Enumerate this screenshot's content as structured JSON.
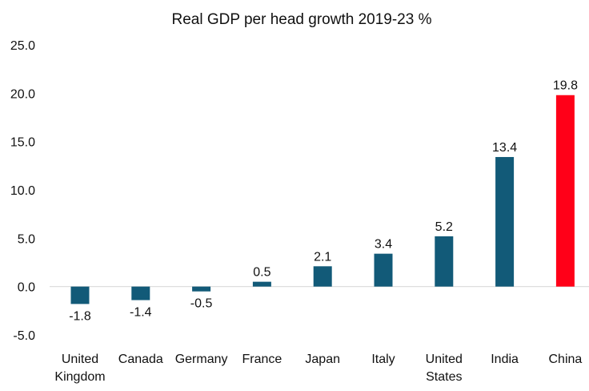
{
  "chart_data": {
    "type": "bar",
    "title": "Real GDP per head growth 2019-23 %",
    "categories": [
      [
        "United",
        "Kingdom"
      ],
      [
        "Canada"
      ],
      [
        "Germany"
      ],
      [
        "France"
      ],
      [
        "Japan"
      ],
      [
        "Italy"
      ],
      [
        "United",
        "States"
      ],
      [
        "India"
      ],
      [
        "China"
      ]
    ],
    "values": [
      -1.8,
      -1.4,
      -0.5,
      0.5,
      2.1,
      3.4,
      5.2,
      13.4,
      19.8
    ],
    "data_labels": [
      "-1.8",
      "-1.4",
      "-0.5",
      "0.5",
      "2.1",
      "3.4",
      "5.2",
      "13.4",
      "19.8"
    ],
    "bar_colors": [
      "#125a78",
      "#125a78",
      "#125a78",
      "#125a78",
      "#125a78",
      "#125a78",
      "#125a78",
      "#125a78",
      "#ff0018"
    ],
    "ylim": [
      -5,
      25
    ],
    "yticks": [
      "25.0",
      "20.0",
      "15.0",
      "10.0",
      "5.0",
      "0.0",
      "-5.0"
    ],
    "ytick_values": [
      25,
      20,
      15,
      10,
      5,
      0,
      -5
    ],
    "grid": false,
    "legend": "none"
  }
}
